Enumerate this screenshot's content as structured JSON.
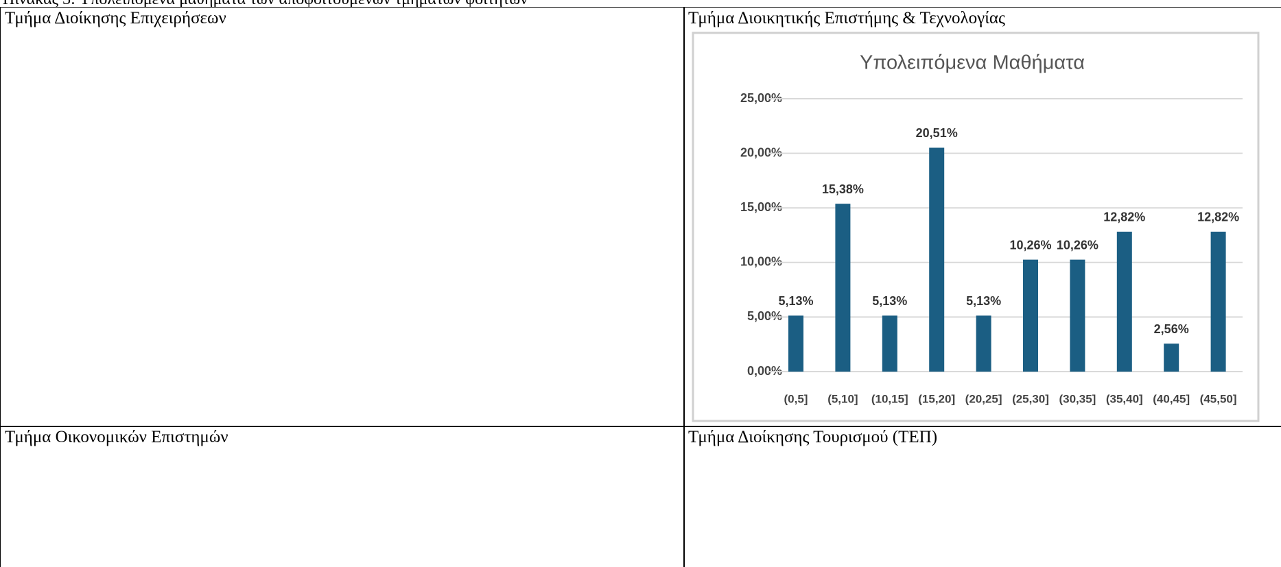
{
  "caption": "Πίνακας 3: Υπολειπόμενα μαθήματα των αποφοιτούμενων τμημάτων φοιτητών",
  "table": {
    "cells": [
      "Τμήμα Διοίκησης Επιχειρήσεων",
      "Τμήμα Διοικητικής Επιστήμης & Τεχνολογίας",
      "Τμήμα Οικονομικών Επιστημών",
      "Τμήμα Διοίκησης Τουρισμού (ΤΕΠ)"
    ]
  },
  "chart_data": {
    "type": "bar",
    "title": "Υπολειπόμενα Μαθήματα",
    "categories": [
      "(0,5]",
      "(5,10]",
      "(10,15]",
      "(15,20]",
      "(20,25]",
      "(25,30]",
      "(30,35]",
      "(35,40]",
      "(40,45]",
      "(45,50]"
    ],
    "values": [
      5.13,
      15.38,
      5.13,
      20.51,
      5.13,
      10.26,
      10.26,
      12.82,
      2.56,
      12.82
    ],
    "value_labels": [
      "5,13%",
      "15,38%",
      "5,13%",
      "20,51%",
      "5,13%",
      "10,26%",
      "10,26%",
      "12,82%",
      "2,56%",
      "12,82%"
    ],
    "color": "#1b5e83",
    "ylim": [
      0,
      25
    ],
    "yticks": [
      {
        "value": 0,
        "label": "0,00%"
      },
      {
        "value": 5,
        "label": "5,00%"
      },
      {
        "value": 10,
        "label": "10,00%"
      },
      {
        "value": 15,
        "label": "15,00%"
      },
      {
        "value": 20,
        "label": "20,00%"
      },
      {
        "value": 25,
        "label": "25,00%"
      }
    ],
    "grid": true
  }
}
